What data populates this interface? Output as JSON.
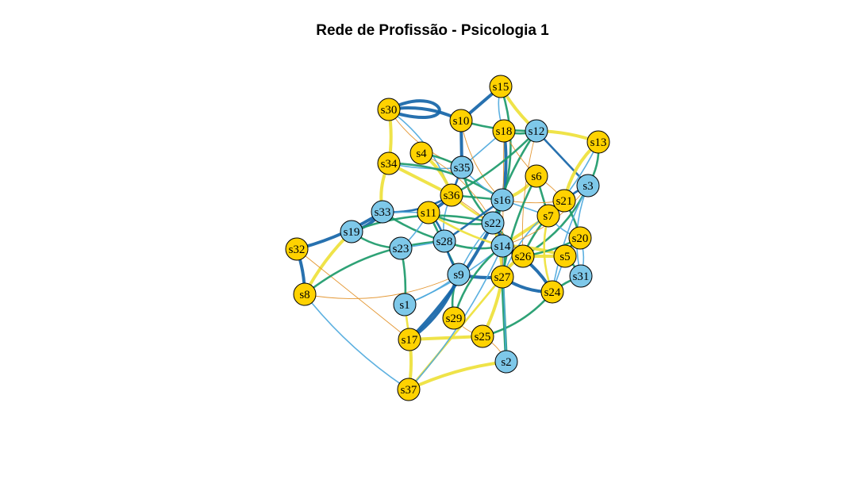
{
  "title": "Rede de Profissão - Psicologia 1",
  "colors": {
    "yellow_node": "#FFD200",
    "blue_node": "#7EC8E9",
    "edge_darkblue": "#1565A8",
    "edge_lightblue": "#4EA9DD",
    "edge_green": "#1C9A6A",
    "edge_yellow": "#EEE13A",
    "edge_orange": "#E3922A"
  },
  "nodes": [
    {
      "id": "s1",
      "group": "blue"
    },
    {
      "id": "s2",
      "group": "blue"
    },
    {
      "id": "s3",
      "group": "blue"
    },
    {
      "id": "s4",
      "group": "yellow"
    },
    {
      "id": "s5",
      "group": "yellow"
    },
    {
      "id": "s6",
      "group": "yellow"
    },
    {
      "id": "s7",
      "group": "yellow"
    },
    {
      "id": "s8",
      "group": "yellow"
    },
    {
      "id": "s9",
      "group": "blue"
    },
    {
      "id": "s10",
      "group": "yellow"
    },
    {
      "id": "s11",
      "group": "yellow"
    },
    {
      "id": "s12",
      "group": "blue"
    },
    {
      "id": "s13",
      "group": "yellow"
    },
    {
      "id": "s14",
      "group": "blue"
    },
    {
      "id": "s15",
      "group": "yellow"
    },
    {
      "id": "s16",
      "group": "blue"
    },
    {
      "id": "s17",
      "group": "yellow"
    },
    {
      "id": "s18",
      "group": "yellow"
    },
    {
      "id": "s19",
      "group": "blue"
    },
    {
      "id": "s20",
      "group": "yellow"
    },
    {
      "id": "s21",
      "group": "yellow"
    },
    {
      "id": "s22",
      "group": "blue"
    },
    {
      "id": "s23",
      "group": "blue"
    },
    {
      "id": "s24",
      "group": "yellow"
    },
    {
      "id": "s25",
      "group": "yellow"
    },
    {
      "id": "s26",
      "group": "yellow"
    },
    {
      "id": "s27",
      "group": "yellow"
    },
    {
      "id": "s28",
      "group": "blue"
    },
    {
      "id": "s29",
      "group": "yellow"
    },
    {
      "id": "s30",
      "group": "yellow"
    },
    {
      "id": "s31",
      "group": "blue"
    },
    {
      "id": "s32",
      "group": "yellow"
    },
    {
      "id": "s33",
      "group": "blue"
    },
    {
      "id": "s34",
      "group": "yellow"
    },
    {
      "id": "s35",
      "group": "blue"
    },
    {
      "id": "s36",
      "group": "yellow"
    },
    {
      "id": "s37",
      "group": "yellow"
    }
  ],
  "edges": [
    {
      "from": "s30",
      "to": "s10",
      "color": "darkblue",
      "weight": 3
    },
    {
      "from": "s30",
      "to": "s30",
      "color": "darkblue",
      "weight": 3
    },
    {
      "from": "s10",
      "to": "s15",
      "color": "darkblue",
      "weight": 3
    },
    {
      "from": "s15",
      "to": "s12",
      "color": "edge_yellow",
      "weight": 3
    },
    {
      "from": "s15",
      "to": "s18",
      "color": "lightblue",
      "weight": 1
    },
    {
      "from": "s15",
      "to": "s16",
      "color": "green",
      "weight": 2
    },
    {
      "from": "s18",
      "to": "s16",
      "color": "darkblue",
      "weight": 3
    },
    {
      "from": "s10",
      "to": "s35",
      "color": "darkblue",
      "weight": 3
    },
    {
      "from": "s10",
      "to": "s12",
      "color": "green",
      "weight": 2
    },
    {
      "from": "s30",
      "to": "s35",
      "color": "orange",
      "weight": 1
    },
    {
      "from": "s30",
      "to": "s36",
      "color": "lightblue",
      "weight": 1
    },
    {
      "from": "s12",
      "to": "s13",
      "color": "edge_yellow",
      "weight": 3
    },
    {
      "from": "s12",
      "to": "s3",
      "color": "darkblue",
      "weight": 2
    },
    {
      "from": "s12",
      "to": "s22",
      "color": "green",
      "weight": 2
    },
    {
      "from": "s13",
      "to": "s21",
      "color": "edge_yellow",
      "weight": 3
    },
    {
      "from": "s13",
      "to": "s3",
      "color": "green",
      "weight": 2
    },
    {
      "from": "s13",
      "to": "s7",
      "color": "lightblue",
      "weight": 1
    },
    {
      "from": "s18",
      "to": "s35",
      "color": "lightblue",
      "weight": 1
    },
    {
      "from": "s18",
      "to": "s6",
      "color": "orange",
      "weight": 1
    },
    {
      "from": "s18",
      "to": "s12",
      "color": "green",
      "weight": 2
    },
    {
      "from": "s4",
      "to": "s36",
      "color": "edge_yellow",
      "weight": 3
    },
    {
      "from": "s4",
      "to": "s35",
      "color": "green",
      "weight": 2
    },
    {
      "from": "s34",
      "to": "s36",
      "color": "edge_yellow",
      "weight": 3
    },
    {
      "from": "s34",
      "to": "s35",
      "color": "lightblue",
      "weight": 1
    },
    {
      "from": "s34",
      "to": "s33",
      "color": "edge_yellow",
      "weight": 3
    },
    {
      "from": "s34",
      "to": "s16",
      "color": "green",
      "weight": 2
    },
    {
      "from": "s30",
      "to": "s34",
      "color": "edge_yellow",
      "weight": 3
    },
    {
      "from": "s35",
      "to": "s36",
      "color": "darkblue",
      "weight": 2
    },
    {
      "from": "s35",
      "to": "s16",
      "color": "lightblue",
      "weight": 1
    },
    {
      "from": "s35",
      "to": "s22",
      "color": "green",
      "weight": 2
    },
    {
      "from": "s6",
      "to": "s16",
      "color": "edge_yellow",
      "weight": 3
    },
    {
      "from": "s6",
      "to": "s21",
      "color": "orange",
      "weight": 1
    },
    {
      "from": "s6",
      "to": "s7",
      "color": "green",
      "weight": 2
    },
    {
      "from": "s3",
      "to": "s21",
      "color": "darkblue",
      "weight": 2
    },
    {
      "from": "s3",
      "to": "s31",
      "color": "lightblue",
      "weight": 1
    },
    {
      "from": "s3",
      "to": "s26",
      "color": "green",
      "weight": 2
    },
    {
      "from": "s36",
      "to": "s11",
      "color": "darkblue",
      "weight": 3
    },
    {
      "from": "s36",
      "to": "s16",
      "color": "green",
      "weight": 2
    },
    {
      "from": "s36",
      "to": "s22",
      "color": "edge_yellow",
      "weight": 2
    },
    {
      "from": "s36",
      "to": "s28",
      "color": "lightblue",
      "weight": 1
    },
    {
      "from": "s36",
      "to": "s33",
      "color": "darkblue",
      "weight": 2
    },
    {
      "from": "s16",
      "to": "s22",
      "color": "darkblue",
      "weight": 3
    },
    {
      "from": "s16",
      "to": "s7",
      "color": "lightblue",
      "weight": 1
    },
    {
      "from": "s16",
      "to": "s21",
      "color": "orange",
      "weight": 1
    },
    {
      "from": "s16",
      "to": "s14",
      "color": "green",
      "weight": 2
    },
    {
      "from": "s21",
      "to": "s7",
      "color": "edge_yellow",
      "weight": 3
    },
    {
      "from": "s21",
      "to": "s20",
      "color": "green",
      "weight": 2
    },
    {
      "from": "s7",
      "to": "s14",
      "color": "edge_yellow",
      "weight": 3
    },
    {
      "from": "s7",
      "to": "s26",
      "color": "green",
      "weight": 2
    },
    {
      "from": "s7",
      "to": "s20",
      "color": "lightblue",
      "weight": 1
    },
    {
      "from": "s33",
      "to": "s19",
      "color": "darkblue",
      "weight": 3
    },
    {
      "from": "s33",
      "to": "s32",
      "color": "darkblue",
      "weight": 3
    },
    {
      "from": "s33",
      "to": "s11",
      "color": "lightblue",
      "weight": 1
    },
    {
      "from": "s33",
      "to": "s28",
      "color": "green",
      "weight": 2
    },
    {
      "from": "s11",
      "to": "s22",
      "color": "green",
      "weight": 2
    },
    {
      "from": "s11",
      "to": "s28",
      "color": "darkblue",
      "weight": 2
    },
    {
      "from": "s11",
      "to": "s23",
      "color": "lightblue",
      "weight": 1
    },
    {
      "from": "s11",
      "to": "s9",
      "color": "green",
      "weight": 2
    },
    {
      "from": "s19",
      "to": "s8",
      "color": "edge_yellow",
      "weight": 3
    },
    {
      "from": "s19",
      "to": "s23",
      "color": "green",
      "weight": 2
    },
    {
      "from": "s19",
      "to": "s22",
      "color": "green",
      "weight": 2
    },
    {
      "from": "s32",
      "to": "s8",
      "color": "darkblue",
      "weight": 3
    },
    {
      "from": "s32",
      "to": "s17",
      "color": "orange",
      "weight": 1
    },
    {
      "from": "s8",
      "to": "s37",
      "color": "lightblue",
      "weight": 1
    },
    {
      "from": "s8",
      "to": "s9",
      "color": "orange",
      "weight": 1
    },
    {
      "from": "s8",
      "to": "s28",
      "color": "green",
      "weight": 2
    },
    {
      "from": "s23",
      "to": "s1",
      "color": "green",
      "weight": 2
    },
    {
      "from": "s23",
      "to": "s28",
      "color": "lightblue",
      "weight": 1
    },
    {
      "from": "s28",
      "to": "s9",
      "color": "darkblue",
      "weight": 2
    },
    {
      "from": "s28",
      "to": "s14",
      "color": "green",
      "weight": 2
    },
    {
      "from": "s22",
      "to": "s14",
      "color": "darkblue",
      "weight": 3
    },
    {
      "from": "s22",
      "to": "s27",
      "color": "edge_yellow",
      "weight": 3
    },
    {
      "from": "s22",
      "to": "s26",
      "color": "green",
      "weight": 2
    },
    {
      "from": "s22",
      "to": "s9",
      "color": "lightblue",
      "weight": 1
    },
    {
      "from": "s14",
      "to": "s26",
      "color": "darkblue",
      "weight": 3
    },
    {
      "from": "s14",
      "to": "s27",
      "color": "green",
      "weight": 2
    },
    {
      "from": "s14",
      "to": "s5",
      "color": "edge_yellow",
      "weight": 3
    },
    {
      "from": "s26",
      "to": "s5",
      "color": "edge_yellow",
      "weight": 3
    },
    {
      "from": "s26",
      "to": "s20",
      "color": "green",
      "weight": 2
    },
    {
      "from": "s20",
      "to": "s5",
      "color": "green",
      "weight": 2
    },
    {
      "from": "s20",
      "to": "s31",
      "color": "lightblue",
      "weight": 1
    },
    {
      "from": "s5",
      "to": "s31",
      "color": "green",
      "weight": 2
    },
    {
      "from": "s5",
      "to": "s24",
      "color": "lightblue",
      "weight": 1
    },
    {
      "from": "s31",
      "to": "s24",
      "color": "green",
      "weight": 2
    },
    {
      "from": "s27",
      "to": "s24",
      "color": "darkblue",
      "weight": 3
    },
    {
      "from": "s27",
      "to": "s26",
      "color": "edge_yellow",
      "weight": 3
    },
    {
      "from": "s27",
      "to": "s25",
      "color": "edge_yellow",
      "weight": 3
    },
    {
      "from": "s27",
      "to": "s2",
      "color": "green",
      "weight": 3
    },
    {
      "from": "s9",
      "to": "s27",
      "color": "darkblue",
      "weight": 3
    },
    {
      "from": "s9",
      "to": "s29",
      "color": "green",
      "weight": 2
    },
    {
      "from": "s9",
      "to": "s17",
      "color": "darkblue",
      "weight": 3
    },
    {
      "from": "s9",
      "to": "s1",
      "color": "lightblue",
      "weight": 1
    },
    {
      "from": "s1",
      "to": "s17",
      "color": "edge_yellow",
      "weight": 2
    },
    {
      "from": "s1",
      "to": "s14",
      "color": "lightblue",
      "weight": 1
    },
    {
      "from": "s29",
      "to": "s25",
      "color": "orange",
      "weight": 1
    },
    {
      "from": "s29",
      "to": "s14",
      "color": "green",
      "weight": 2
    },
    {
      "from": "s17",
      "to": "s37",
      "color": "edge_yellow",
      "weight": 3
    },
    {
      "from": "s17",
      "to": "s25",
      "color": "edge_yellow",
      "weight": 3
    },
    {
      "from": "s17",
      "to": "s22",
      "color": "darkblue",
      "weight": 3
    },
    {
      "from": "s25",
      "to": "s24",
      "color": "green",
      "weight": 2
    },
    {
      "from": "s25",
      "to": "s2",
      "color": "orange",
      "weight": 1
    },
    {
      "from": "s37",
      "to": "s2",
      "color": "edge_yellow",
      "weight": 3
    },
    {
      "from": "s37",
      "to": "s27",
      "color": "edge_yellow",
      "weight": 2
    },
    {
      "from": "s37",
      "to": "s14",
      "color": "lightblue",
      "weight": 1
    },
    {
      "from": "s24",
      "to": "s14",
      "color": "darkblue",
      "weight": 3
    },
    {
      "from": "s24",
      "to": "s7",
      "color": "edge_yellow",
      "weight": 2
    },
    {
      "from": "s24",
      "to": "s3",
      "color": "lightblue",
      "weight": 1
    },
    {
      "from": "s2",
      "to": "s14",
      "color": "lightblue",
      "weight": 1
    },
    {
      "from": "s12",
      "to": "s26",
      "color": "orange",
      "weight": 1
    },
    {
      "from": "s10",
      "to": "s16",
      "color": "orange",
      "weight": 1
    },
    {
      "from": "s4",
      "to": "s22",
      "color": "orange",
      "weight": 1
    },
    {
      "from": "s36",
      "to": "s26",
      "color": "orange",
      "weight": 1
    },
    {
      "from": "s18",
      "to": "s27",
      "color": "orange",
      "weight": 1
    },
    {
      "from": "s6",
      "to": "s27",
      "color": "green",
      "weight": 2
    },
    {
      "from": "s21",
      "to": "s27",
      "color": "lightblue",
      "weight": 1
    },
    {
      "from": "s3",
      "to": "s14",
      "color": "orange",
      "weight": 1
    },
    {
      "from": "s12",
      "to": "s36",
      "color": "green",
      "weight": 2
    },
    {
      "from": "s16",
      "to": "s28",
      "color": "darkblue",
      "weight": 2
    },
    {
      "from": "s11",
      "to": "s14",
      "color": "edge_yellow",
      "weight": 2
    }
  ]
}
